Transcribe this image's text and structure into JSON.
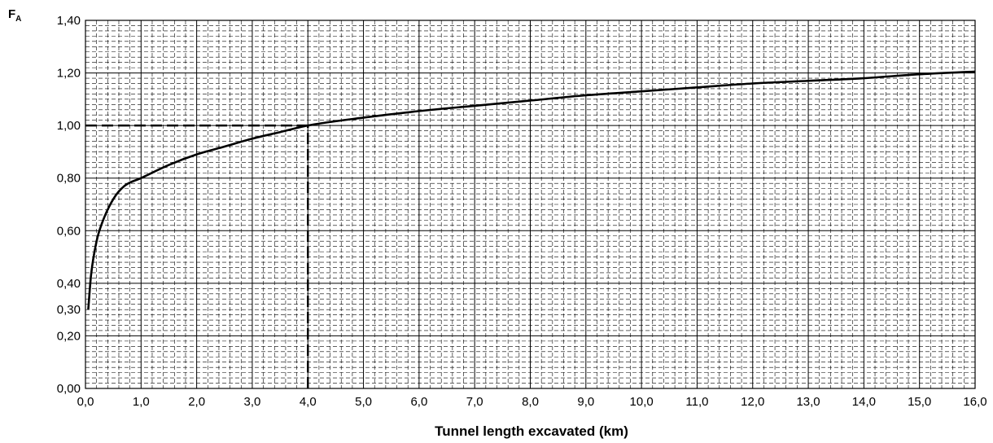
{
  "chart_data": {
    "type": "line",
    "xlabel": "Tunnel length excavated (km)",
    "ylabel": {
      "main": "F",
      "sub": "A"
    },
    "xlim": [
      0,
      16
    ],
    "ylim": [
      0,
      1.4
    ],
    "x_ticks": [
      "0,0",
      "1,0",
      "2,0",
      "3,0",
      "4,0",
      "5,0",
      "6,0",
      "7,0",
      "8,0",
      "9,0",
      "10,0",
      "11,0",
      "12,0",
      "13,0",
      "14,0",
      "15,0",
      "16,0"
    ],
    "y_ticks": [
      {
        "value": 0.0,
        "label": "0,00"
      },
      {
        "value": 0.2,
        "label": "0,20"
      },
      {
        "value": 0.3,
        "label": "0,30"
      },
      {
        "value": 0.4,
        "label": "0,40"
      },
      {
        "value": 0.6,
        "label": "0,60"
      },
      {
        "value": 0.8,
        "label": "0,80"
      },
      {
        "value": 1.0,
        "label": "1,00"
      },
      {
        "value": 1.2,
        "label": "1,20"
      },
      {
        "value": 1.4,
        "label": "1,40"
      }
    ],
    "grid": true,
    "series": [
      {
        "x": [
          0.05,
          0.1,
          0.2,
          0.3,
          0.5,
          0.7,
          1.0,
          1.5,
          2.0,
          2.5,
          3.0,
          3.5,
          4.0,
          5.0,
          6.0,
          7.0,
          8.0,
          9.0,
          10.0,
          11.0,
          12.0,
          13.0,
          14.0,
          15.0,
          16.0
        ],
        "y": [
          0.3,
          0.43,
          0.56,
          0.63,
          0.72,
          0.77,
          0.8,
          0.85,
          0.89,
          0.92,
          0.95,
          0.975,
          1.0,
          1.03,
          1.055,
          1.075,
          1.095,
          1.115,
          1.13,
          1.145,
          1.16,
          1.17,
          1.18,
          1.195,
          1.205
        ]
      }
    ],
    "reference_lines": [
      {
        "type": "horizontal",
        "y": 1.0,
        "x_from": 0,
        "x_to": 4.0,
        "style": "dashed"
      },
      {
        "type": "vertical",
        "x": 4.0,
        "y_from": 0,
        "y_to": 1.0,
        "style": "dashed"
      }
    ]
  }
}
